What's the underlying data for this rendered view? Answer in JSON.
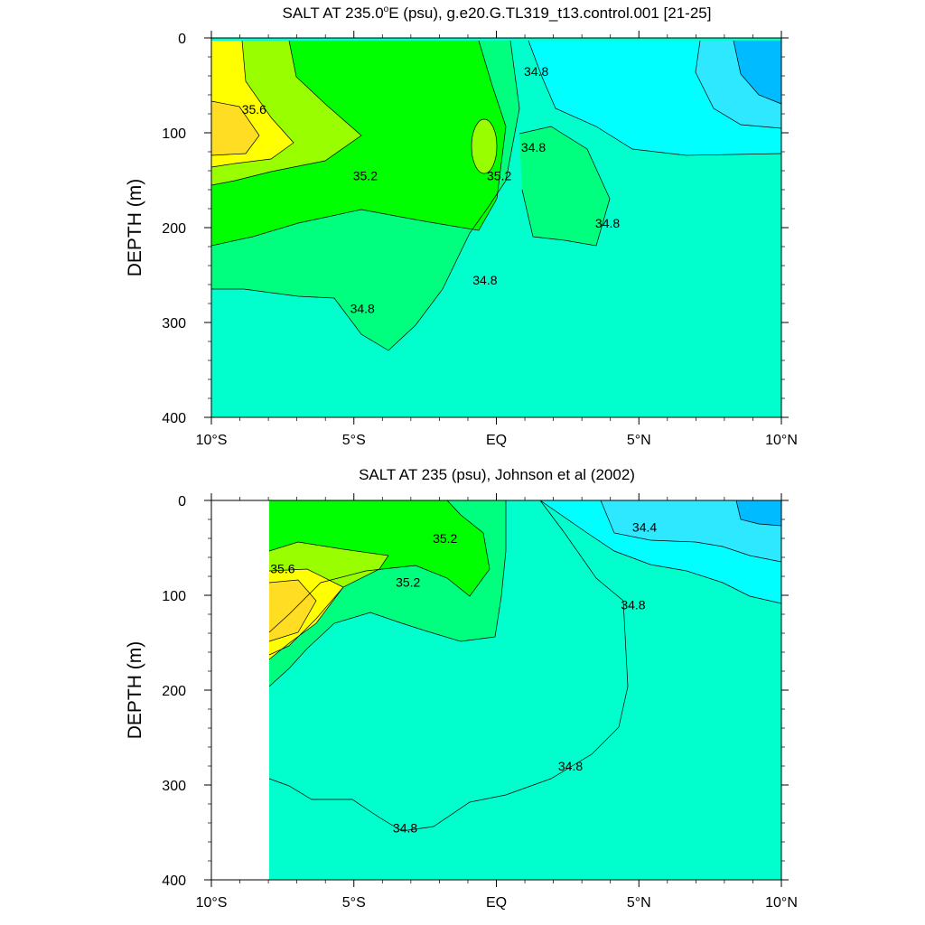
{
  "chart_data": [
    {
      "type": "heatmap",
      "title": "SALT AT 235.0°E (psu), g.e20.G.TL319_t13.control.001 [21-25]",
      "ylabel": "DEPTH (m)",
      "xlim": [
        -10,
        10
      ],
      "ylim": [
        400,
        0
      ],
      "yticks": [
        0,
        100,
        200,
        300,
        400
      ],
      "xtick_labels": [
        "10°S",
        "5°S",
        "EQ",
        "5°N",
        "10°N"
      ],
      "contour_interval": 0.2,
      "contour_labels": [
        {
          "text": "35.6",
          "lat": -8.5,
          "depth": 75
        },
        {
          "text": "35.2",
          "lat": -4.6,
          "depth": 145
        },
        {
          "text": "35.2",
          "lat": 0.1,
          "depth": 145
        },
        {
          "text": "34.8",
          "lat": 1.4,
          "depth": 35
        },
        {
          "text": "34.8",
          "lat": 1.3,
          "depth": 115
        },
        {
          "text": "34.8",
          "lat": 3.9,
          "depth": 195
        },
        {
          "text": "34.8",
          "lat": -4.7,
          "depth": 285
        },
        {
          "text": "34.8",
          "lat": -0.4,
          "depth": 255
        }
      ],
      "fill_levels": [
        {
          "level": "<34.4",
          "color": "#00bbff"
        },
        {
          "level": "34.4-34.6",
          "color": "#2ee8ff"
        },
        {
          "level": "34.6-34.8",
          "color": "#00ffff"
        },
        {
          "level": "34.8-35.0",
          "color": "#00ffcc"
        },
        {
          "level": "35.0-35.2",
          "color": "#00ff7f"
        },
        {
          "level": "35.2-35.4",
          "color": "#00ff00"
        },
        {
          "level": "35.4-35.6",
          "color": "#99ff00"
        },
        {
          "level": "35.6-35.8",
          "color": "#ffff00"
        },
        {
          "level": ">35.8",
          "color": "#ffdd22"
        }
      ]
    },
    {
      "type": "heatmap",
      "title": "SALT AT 235 (psu), Johnson et al (2002)",
      "ylabel": "DEPTH (m)",
      "xlim": [
        -10,
        10
      ],
      "ylim": [
        400,
        0
      ],
      "yticks": [
        0,
        100,
        200,
        300,
        400
      ],
      "xtick_labels": [
        "10°S",
        "5°S",
        "EQ",
        "5°N",
        "10°N"
      ],
      "data_xmin": -8,
      "contour_interval": 0.2,
      "contour_labels": [
        {
          "text": "35.6",
          "lat": -7.5,
          "depth": 72
        },
        {
          "text": "35.2",
          "lat": -3.1,
          "depth": 86
        },
        {
          "text": "35.2",
          "lat": -1.8,
          "depth": 40
        },
        {
          "text": "34.4",
          "lat": 5.2,
          "depth": 28
        },
        {
          "text": "34.8",
          "lat": 4.8,
          "depth": 110
        },
        {
          "text": "34.8",
          "lat": 2.6,
          "depth": 280
        },
        {
          "text": "34.8",
          "lat": -3.2,
          "depth": 345
        }
      ]
    }
  ]
}
